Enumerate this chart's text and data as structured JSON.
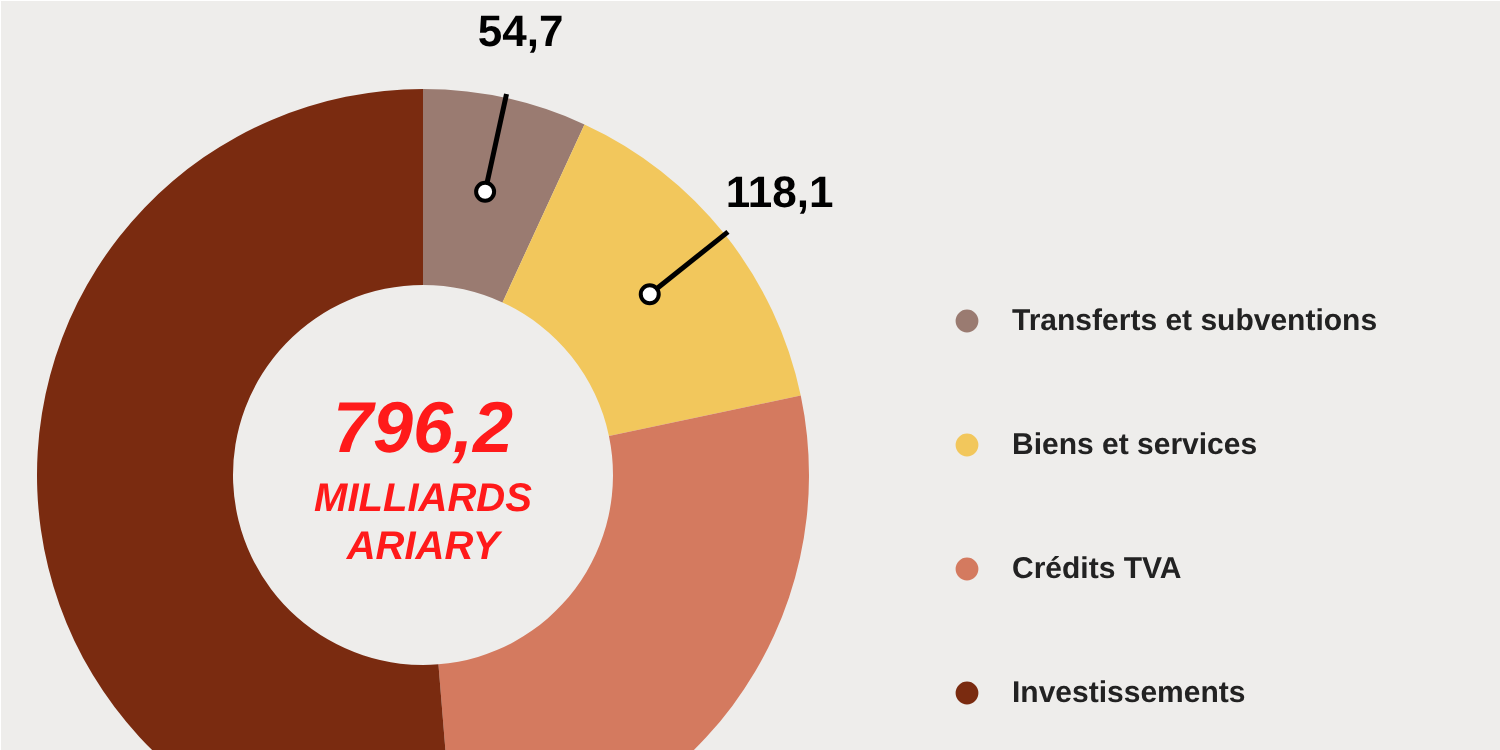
{
  "chart_data": {
    "type": "donut",
    "categories": [
      "Transferts et subventions",
      "Biens et services",
      "Crédits TVA",
      "Investissements"
    ],
    "values": [
      54.7,
      118.1,
      215,
      408.4
    ],
    "colors": [
      "#9a7b71",
      "#f2c75c",
      "#d47a5f",
      "#7a2b10"
    ],
    "value_labels": [
      "54,7",
      "118,1",
      null,
      null
    ],
    "annotations": [
      "796,2",
      "MILLIARDS",
      "ARIARY"
    ],
    "legend": "right"
  }
}
